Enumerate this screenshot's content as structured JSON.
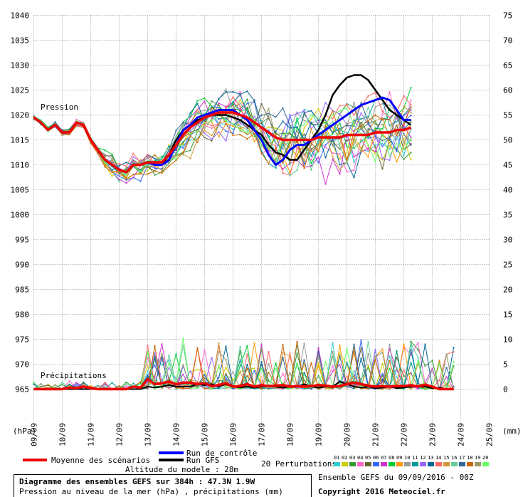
{
  "chart_data": {
    "type": "line",
    "title": "Diagramme des ensembles GEFS sur 384h : 47.3N 1.9W",
    "subtitle": "Pression au niveau de la mer (hPa) , précipitations (mm)",
    "pressure_label": "Pression",
    "precip_label": "Précipitations",
    "left_unit": "(hPa)",
    "right_unit": "(mm)",
    "x_labels": [
      "09/09",
      "10/09",
      "11/09",
      "12/09",
      "13/09",
      "14/09",
      "15/09",
      "16/09",
      "17/09",
      "18/09",
      "19/09",
      "20/09",
      "21/09",
      "22/09",
      "23/09",
      "24/09",
      "25/09"
    ],
    "y_left_ticks": [
      "1040",
      "1035",
      "1030",
      "1025",
      "1020",
      "1015",
      "1010",
      "1005",
      "1000",
      "995",
      "990",
      "985",
      "980",
      "975",
      "970",
      "965"
    ],
    "y_right_ticks": [
      "75",
      "70",
      "65",
      "60",
      "55",
      "50",
      "45",
      "40",
      "35",
      "30",
      "25",
      "20",
      "15",
      "10",
      "5",
      "0"
    ],
    "ylim_pressure": [
      965,
      1040
    ],
    "ylim_precip": [
      0,
      75
    ],
    "step_hours": 6,
    "grid": true,
    "pressure_mean": [
      1019.5,
      1018.5,
      1017,
      1018,
      1016.5,
      1016.5,
      1018.5,
      1018,
      1015,
      1013,
      1011,
      1010,
      1009,
      1008.5,
      1010,
      1010,
      1010.5,
      1010.5,
      1010.5,
      1012,
      1014,
      1016,
      1017.5,
      1018.5,
      1019.5,
      1020,
      1020.5,
      1020.5,
      1020.5,
      1020,
      1019.5,
      1018.5,
      1017.5,
      1016.5,
      1015.5,
      1015,
      1015,
      1015,
      1015,
      1015,
      1015.5,
      1015.5,
      1015.5,
      1015.5,
      1016,
      1016,
      1016,
      1016,
      1016.5,
      1016.5,
      1016.5,
      1017,
      1017,
      1017.5
    ],
    "pressure_control": [
      1019.5,
      1018.5,
      1017,
      1018,
      1016.5,
      1016.5,
      1018.5,
      1018,
      1015,
      1013,
      1011,
      1010,
      1009,
      1008.5,
      1010,
      1010,
      1010.5,
      1010,
      1010,
      1011,
      1014,
      1017,
      1018,
      1019.5,
      1020,
      1020.5,
      1021,
      1021,
      1021,
      1020,
      1019,
      1017,
      1015,
      1012,
      1010,
      1011,
      1013,
      1014,
      1014,
      1015,
      1016,
      1017,
      1018,
      1019,
      1020,
      1021,
      1022,
      1022.5,
      1023,
      1023.5,
      1023,
      1021,
      1019,
      1019
    ],
    "pressure_gfs": [
      1019.5,
      1018.5,
      1017,
      1018,
      1016.5,
      1016.5,
      1018.5,
      1018,
      1015,
      1013,
      1011,
      1010,
      1009,
      1008.5,
      1010,
      1010,
      1010.5,
      1010,
      1010,
      1012,
      1015,
      1017,
      1018,
      1019,
      1019.5,
      1020,
      1020,
      1020,
      1019.5,
      1019,
      1018,
      1017,
      1016,
      1014,
      1012.5,
      1012,
      1011,
      1011,
      1013,
      1015,
      1017,
      1020,
      1024,
      1026,
      1027.5,
      1028,
      1028,
      1027,
      1025,
      1023,
      1021,
      1020,
      1019,
      1018
    ],
    "precip_mean": [
      0,
      0,
      0,
      0,
      0,
      0.3,
      0.2,
      0.5,
      0.2,
      0,
      0,
      0,
      0,
      0,
      0.5,
      0.3,
      2,
      1,
      1.2,
      1.5,
      1,
      1.3,
      1.3,
      1,
      1.2,
      0.6,
      0.8,
      1.2,
      0.5,
      0.6,
      1,
      0.5,
      0.8,
      0.6,
      0.7,
      0.8,
      0.5,
      0.6,
      0.5,
      0.6,
      0.8,
      0.7,
      0.5,
      0.6,
      1,
      1.3,
      1,
      0.7,
      0.5,
      0.6,
      0.5,
      0.6,
      0.6,
      0.8,
      0.5,
      0.9,
      0.5,
      0,
      0,
      0
    ],
    "precip_gfs": [
      0,
      0,
      0,
      0,
      0,
      0,
      0,
      0,
      0,
      0,
      0,
      0,
      0,
      0,
      0,
      0,
      0.5,
      0.3,
      0.5,
      0.8,
      0.5,
      0.5,
      0.5,
      1,
      0.8,
      1,
      0.5,
      1,
      0.5,
      0.3,
      0.5,
      0.3,
      0.5,
      0.6,
      0.5,
      0.3,
      0.5,
      0.5,
      1,
      0.5,
      0.3,
      0.5,
      0.5,
      1.5,
      1,
      0.5,
      0.3,
      0.5,
      0.2,
      0.3,
      0.5,
      0.2,
      0.3,
      0.5,
      0.5,
      0.5,
      0.2,
      0.3,
      0,
      0
    ],
    "series_names": [
      "Moyenne des scénarios",
      "Run de contrôle",
      "Run GFS"
    ]
  },
  "colors": {
    "mean": "#ee0000",
    "control": "#0000ff",
    "gfs": "#000000",
    "grid": "#999999",
    "perturbations": [
      "#33cccc",
      "#cccc00",
      "#339933",
      "#ff66cc",
      "#666633",
      "#3366ff",
      "#cc33cc",
      "#00cc33",
      "#ff9900",
      "#999999",
      "#009999",
      "#9966ff",
      "#006699",
      "#ff6666",
      "#cc9933",
      "#66cc99",
      "#336699",
      "#cc6600",
      "#999966",
      "#66ff66"
    ]
  },
  "legend": {
    "mean": "Moyenne des scénarios",
    "control": "Run de contrôle",
    "gfs": "Run GFS",
    "perturbations": "20 Perturbations",
    "perturbation_ids": [
      "01",
      "02",
      "03",
      "04",
      "05",
      "06",
      "07",
      "08",
      "09",
      "10",
      "11",
      "12",
      "13",
      "14",
      "15",
      "16",
      "17",
      "18",
      "19",
      "20"
    ]
  },
  "footer": {
    "altitude": "Altitude du modele : 28m",
    "run": "Ensemble GEFS du 09/09/2016 - 00Z",
    "copyright": "Copyright 2016 Meteociel.fr"
  }
}
